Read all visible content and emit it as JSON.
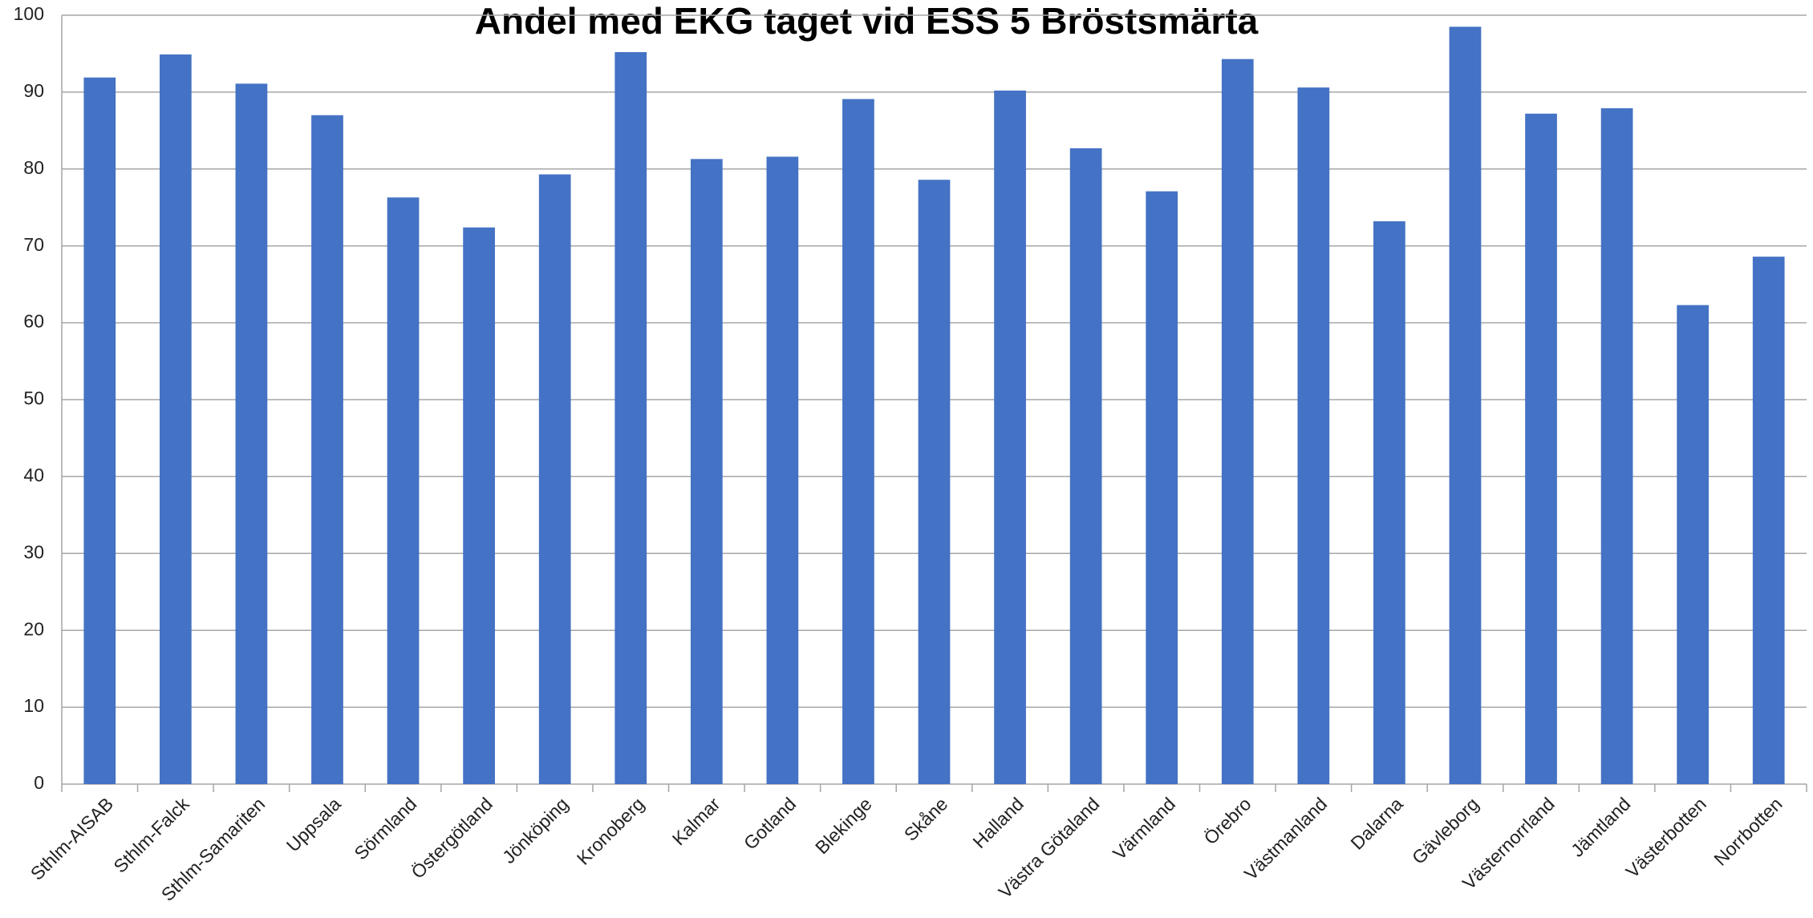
{
  "chart_data": {
    "type": "bar",
    "title": "Andel med EKG taget vid ESS 5 Bröstsmärta",
    "categories": [
      "Sthlm-AISAB",
      "Sthlm-Falck",
      "Sthlm-Samariten",
      "Uppsala",
      "Sörmland",
      "Östergötland",
      "Jönköping",
      "Kronoberg",
      "Kalmar",
      "Gotland",
      "Blekinge",
      "Skåne",
      "Halland",
      "Västra Götaland",
      "Värmland",
      "Örebro",
      "Västmanland",
      "Dalarna",
      "Gävleborg",
      "Västernorrland",
      "Jämtland",
      "Västerbotten",
      "Norrbotten"
    ],
    "values": [
      91.9,
      94.9,
      91.1,
      87.0,
      76.3,
      72.4,
      79.3,
      95.2,
      81.3,
      81.6,
      89.1,
      78.6,
      90.2,
      82.7,
      77.1,
      94.3,
      90.6,
      73.2,
      98.5,
      87.2,
      87.9,
      62.3,
      68.6
    ],
    "color": "#4472c4",
    "ylim": [
      0,
      100
    ],
    "yticks": [
      0,
      10,
      20,
      30,
      40,
      50,
      60,
      70,
      80,
      90,
      100
    ],
    "grid": true
  }
}
